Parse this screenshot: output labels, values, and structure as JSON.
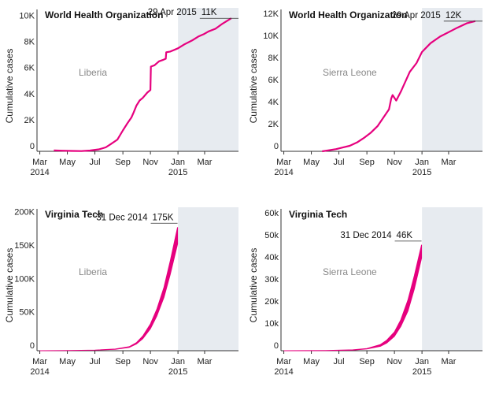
{
  "chart_data": [
    {
      "type": "line",
      "title": "World Health Organization",
      "region": "Liberia",
      "ylabel": "Cumulative cases",
      "x_ticks": [
        [
          "Mar",
          "2014"
        ],
        [
          "May",
          ""
        ],
        [
          "Jul",
          ""
        ],
        [
          "Sep",
          ""
        ],
        [
          "Nov",
          ""
        ],
        [
          "Jan",
          "2015"
        ],
        [
          "Mar",
          ""
        ]
      ],
      "y_ticks": [
        "0",
        "2K",
        "4K",
        "6K",
        "8K",
        "10K"
      ],
      "ylim": [
        0,
        11000
      ],
      "shaded_region": [
        "2015-01-01",
        "2015-05-15"
      ],
      "annotation": {
        "date": "29 Apr 2015",
        "value": "11K"
      },
      "color": "#e6007e",
      "series": [
        {
          "x": [
            "2014-04-01",
            "2014-04-20",
            "2014-05-10",
            "2014-06-01",
            "2014-06-20",
            "2014-07-10",
            "2014-07-25",
            "2014-08-05",
            "2014-08-20",
            "2014-09-01",
            "2014-09-10",
            "2014-09-20",
            "2014-09-25",
            "2014-10-01",
            "2014-10-08",
            "2014-10-15",
            "2014-10-25",
            "2014-11-01",
            "2014-11-02",
            "2014-11-10",
            "2014-11-20",
            "2014-11-28",
            "2014-12-05",
            "2014-12-06",
            "2014-12-15",
            "2015-01-01",
            "2015-01-15",
            "2015-02-01",
            "2015-02-15",
            "2015-02-28",
            "2015-03-10",
            "2015-03-25",
            "2015-04-10",
            "2015-04-29"
          ],
          "y": [
            70,
            50,
            30,
            20,
            60,
            150,
            300,
            550,
            900,
            1600,
            2100,
            2600,
            3000,
            3500,
            3900,
            4100,
            4500,
            4700,
            6500,
            6600,
            6900,
            7000,
            7100,
            7600,
            7650,
            7900,
            8200,
            8500,
            8800,
            9000,
            9200,
            9400,
            9800,
            10200
          ]
        }
      ]
    },
    {
      "type": "line",
      "title": "World Health Organization",
      "region": "Sierra Leone",
      "ylabel": "Cumulative cases",
      "x_ticks": [
        [
          "Mar",
          "2014"
        ],
        [
          "May",
          ""
        ],
        [
          "Jul",
          ""
        ],
        [
          "Sep",
          ""
        ],
        [
          "Nov",
          ""
        ],
        [
          "Jan",
          "2015"
        ],
        [
          "Mar",
          ""
        ]
      ],
      "y_ticks": [
        "0",
        "2K",
        "4K",
        "6K",
        "8K",
        "10K",
        "12K"
      ],
      "ylim": [
        0,
        13000
      ],
      "shaded_region": [
        "2015-01-01",
        "2015-05-15"
      ],
      "annotation": {
        "date": "29 Apr 2015",
        "value": "12K"
      },
      "color": "#e6007e",
      "series": [
        {
          "x": [
            "2014-05-25",
            "2014-06-10",
            "2014-06-25",
            "2014-07-10",
            "2014-07-25",
            "2014-08-10",
            "2014-08-25",
            "2014-09-10",
            "2014-09-25",
            "2014-10-05",
            "2014-10-20",
            "2014-10-25",
            "2014-10-28",
            "2014-11-05",
            "2014-11-15",
            "2014-11-25",
            "2014-12-05",
            "2014-12-20",
            "2015-01-01",
            "2015-01-20",
            "2015-02-10",
            "2015-03-01",
            "2015-03-20",
            "2015-04-10",
            "2015-04-29"
          ],
          "y": [
            0,
            100,
            200,
            350,
            500,
            800,
            1200,
            1700,
            2300,
            2900,
            3800,
            4800,
            5100,
            4600,
            5400,
            6300,
            7200,
            8000,
            9000,
            9800,
            10400,
            10800,
            11200,
            11600,
            11800
          ]
        }
      ]
    },
    {
      "type": "area",
      "title": "Virginia Tech",
      "region": "Liberia",
      "ylabel": "Cumulative cases",
      "x_ticks": [
        [
          "Mar",
          "2014"
        ],
        [
          "May",
          ""
        ],
        [
          "Jul",
          ""
        ],
        [
          "Sep",
          ""
        ],
        [
          "Nov",
          ""
        ],
        [
          "Jan",
          "2015"
        ],
        [
          "Mar",
          ""
        ]
      ],
      "y_ticks": [
        "0",
        "50K",
        "100K",
        "150K",
        "200K"
      ],
      "ylim": [
        0,
        215000
      ],
      "shaded_region": [
        "2015-01-01",
        "2015-05-15"
      ],
      "annotation": {
        "date": "31 Dec 2014",
        "value": "175K"
      },
      "color": "#e6007e",
      "series": [
        {
          "x": [
            "2014-03-01",
            "2014-05-01",
            "2014-07-01",
            "2014-08-15",
            "2014-09-15",
            "2014-10-01",
            "2014-10-15",
            "2014-11-01",
            "2014-11-15",
            "2014-12-01",
            "2014-12-15",
            "2014-12-31"
          ],
          "lower": [
            0,
            300,
            900,
            2000,
            5000,
            10000,
            18000,
            33000,
            52000,
            80000,
            115000,
            160000
          ],
          "upper": [
            0,
            300,
            1000,
            2500,
            6000,
            12000,
            22000,
            40000,
            62000,
            95000,
            135000,
            185000
          ]
        }
      ]
    },
    {
      "type": "area",
      "title": "Virginia Tech",
      "region": "Sierra Leone",
      "ylabel": "Cumulative cases",
      "x_ticks": [
        [
          "Mar",
          "2014"
        ],
        [
          "May",
          ""
        ],
        [
          "Jul",
          ""
        ],
        [
          "Sep",
          ""
        ],
        [
          "Nov",
          ""
        ],
        [
          "Jan",
          "2015"
        ],
        [
          "Mar",
          ""
        ]
      ],
      "y_ticks": [
        "0",
        "10k",
        "20k",
        "30k",
        "40k",
        "50k",
        "60k"
      ],
      "ylim": [
        0,
        65000
      ],
      "shaded_region": [
        "2015-01-01",
        "2015-05-15"
      ],
      "annotation": {
        "date": "31 Dec 2014",
        "value": "46K"
      },
      "color": "#e6007e",
      "series": [
        {
          "x": [
            "2014-03-01",
            "2014-06-01",
            "2014-08-01",
            "2014-09-01",
            "2014-10-01",
            "2014-10-15",
            "2014-11-01",
            "2014-11-15",
            "2014-12-01",
            "2014-12-15",
            "2014-12-31"
          ],
          "lower": [
            0,
            50,
            300,
            800,
            2000,
            3500,
            6500,
            11000,
            18000,
            28000,
            42000
          ],
          "upper": [
            0,
            60,
            400,
            1000,
            2800,
            4800,
            8500,
            14000,
            23000,
            34000,
            48000
          ]
        }
      ]
    }
  ]
}
